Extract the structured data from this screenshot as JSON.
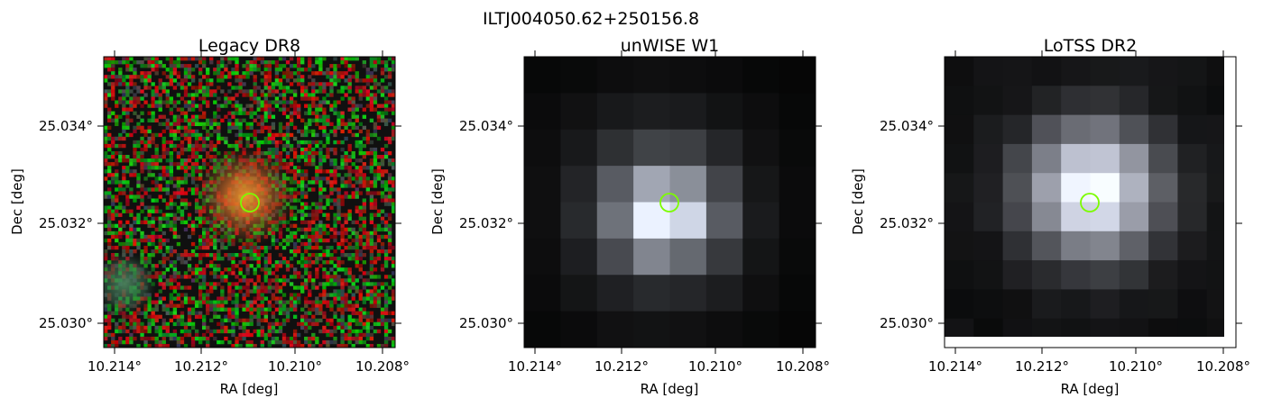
{
  "figure": {
    "suptitle": "ILTJ004050.62+250156.8"
  },
  "panels": [
    {
      "title": "Legacy DR8",
      "xlabel": "RA [deg]",
      "ylabel": "Dec [deg]",
      "xticks": [
        "10.214°",
        "10.212°",
        "10.210°",
        "10.208°"
      ],
      "yticks": [
        "25.034°",
        "25.032°",
        "25.030°"
      ],
      "marker_color": "#7CFC00"
    },
    {
      "title": "unWISE W1",
      "xlabel": "RA [deg]",
      "ylabel": "Dec [deg]",
      "xticks": [
        "10.214°",
        "10.212°",
        "10.210°",
        "10.208°"
      ],
      "yticks": [
        "25.034°",
        "25.032°",
        "25.030°"
      ],
      "marker_color": "#7CFC00"
    },
    {
      "title": "LoTSS DR2",
      "xlabel": "RA [deg]",
      "ylabel": "Dec [deg]",
      "xticks": [
        "10.214°",
        "10.212°",
        "10.210°",
        "10.208°"
      ],
      "yticks": [
        "25.034°",
        "25.032°",
        "25.030°"
      ],
      "marker_color": "#7CFC00"
    }
  ]
}
